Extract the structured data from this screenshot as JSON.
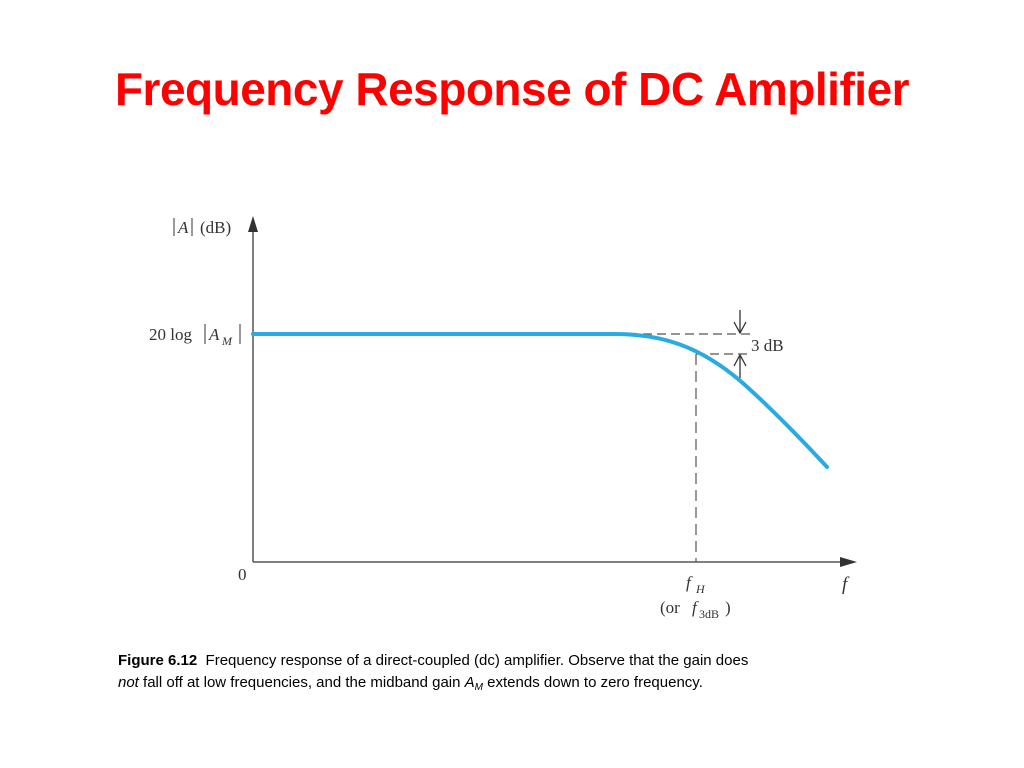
{
  "title": "Frequency Response of DC Amplifier",
  "figure": {
    "y_axis_label_A": "A",
    "y_axis_label_unit": "(dB)",
    "midband_label_prefix": "20 log",
    "midband_label_A": "A",
    "midband_label_sub": "M",
    "origin_label": "0",
    "x_axis_label": "f",
    "fh_label_f": "f",
    "fh_label_sub": "H",
    "fh_alt_prefix": "(or",
    "fh_alt_f": "f",
    "fh_alt_sub": "3dB",
    "fh_alt_suffix": ")",
    "drop_label": "3 dB",
    "curve_color": "#29abe2"
  },
  "caption": {
    "figure_number": "Figure 6.12",
    "text_1": "Frequency response of a direct-coupled (dc) amplifier. Observe that the gain does",
    "text_not": "not",
    "text_2": "fall off at low frequencies, and the midband gain",
    "gain_symbol": "A",
    "gain_sub": "M",
    "text_3": "extends down to zero frequency."
  }
}
